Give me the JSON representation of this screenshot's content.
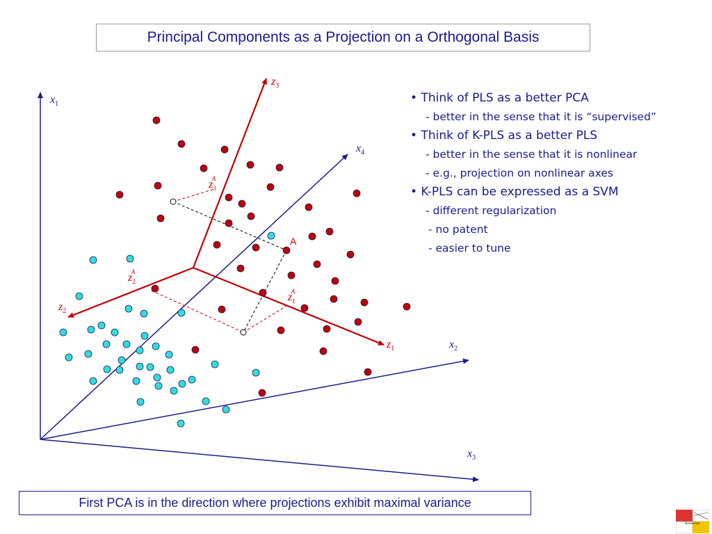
{
  "title": "Principal Components as a Projection on a Orthogonal Basis",
  "bullets": [
    {
      "kind": "main",
      "text": "• Think of PLS as a better PCA"
    },
    {
      "kind": "sub",
      "text": "- better in the sense that it is “supervised”"
    },
    {
      "kind": "main",
      "text": "• Think of K-PLS as a better PLS"
    },
    {
      "kind": "sub",
      "text": "- better in the sense that it is nonlinear"
    },
    {
      "kind": "sub",
      "text": "- e.g., projection on nonlinear axes"
    },
    {
      "kind": "main",
      "text": "• K-PLS can be expressed as a SVM"
    },
    {
      "kind": "sub",
      "text": "- different regularization"
    },
    {
      "kind": "sub",
      "text": "- no patent"
    },
    {
      "kind": "sub",
      "text": "- easier to tune"
    }
  ],
  "caption": "First PCA is in the direction where projections exhibit maximal variance",
  "diagram": {
    "axis_labels": {
      "x1": {
        "base": "x",
        "sub": "1"
      },
      "x2": {
        "base": "x",
        "sub": "2"
      },
      "x3": {
        "base": "x",
        "sub": "3"
      },
      "x4": {
        "base": "x",
        "sub": "4"
      },
      "z1": {
        "base": "z",
        "sub": "1"
      },
      "z2": {
        "base": "z",
        "sub": "2"
      },
      "z3": {
        "base": "z",
        "sub": "3"
      }
    },
    "projection_labels": {
      "z1A": {
        "base": "z",
        "sub": "1",
        "sup": "A"
      },
      "z2A": {
        "base": "z",
        "sub": "2",
        "sup": "A"
      },
      "z3A": {
        "base": "z",
        "sub": "3",
        "sup": "A"
      }
    },
    "point_label": "A",
    "colors": {
      "blue_axis": "#1a1a8c",
      "red_axis": "#c00000",
      "red_point": "#c00000",
      "cyan_point": "#33dddd",
      "point_stroke": "#1a1a5a",
      "text": "#1a1a8c"
    }
  },
  "logo_text": "Rensselaer"
}
